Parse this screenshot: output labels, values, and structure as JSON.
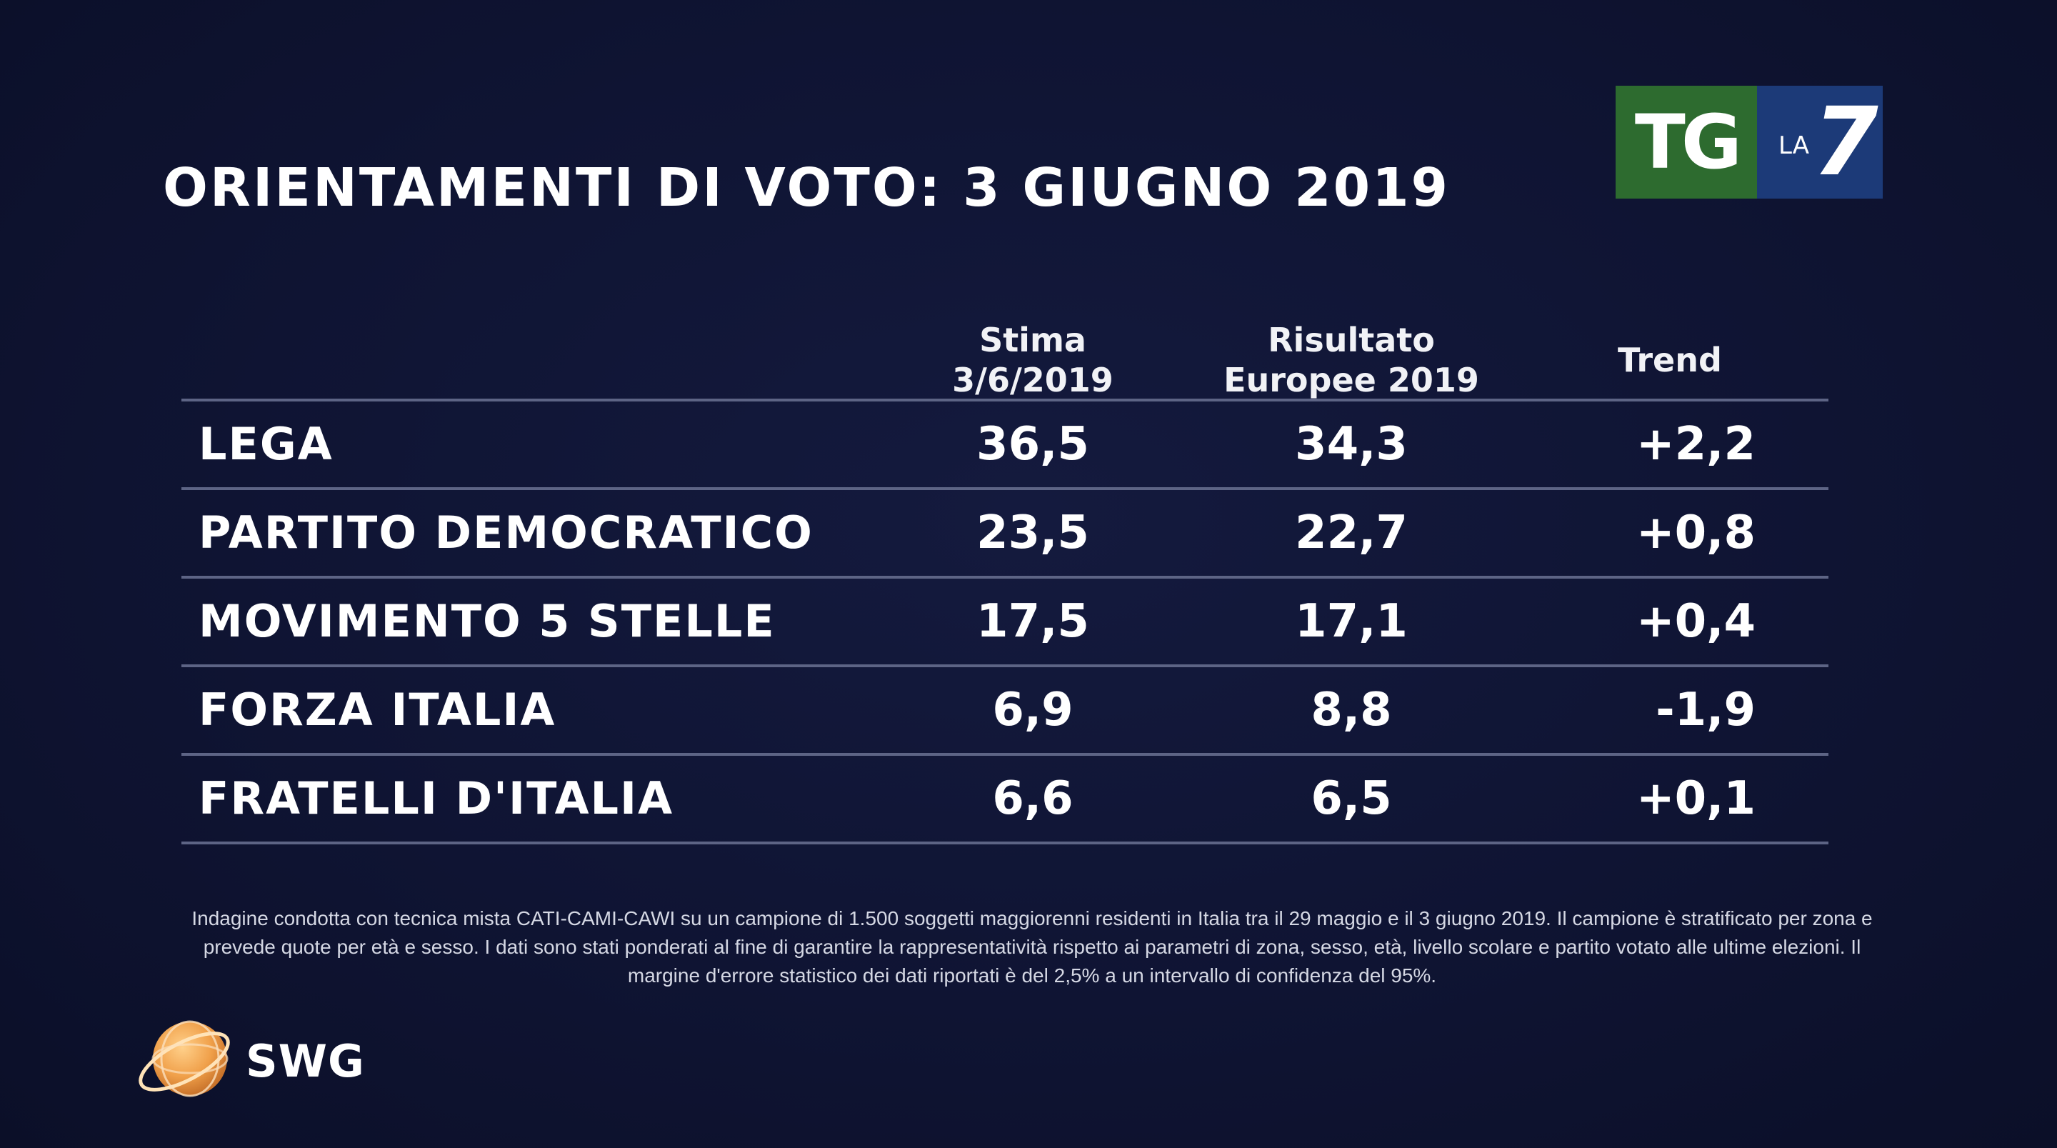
{
  "title": "ORIENTAMENTI DI VOTO: 3 GIUGNO 2019",
  "logo": {
    "tg": "TG",
    "la": "LA",
    "seven": "7",
    "tg_color": "#2d6b2f",
    "la7_color": "#1c3a78"
  },
  "chart_data": {
    "type": "table",
    "columns": [
      "",
      "Stima 3/6/2019",
      "Risultato Europee 2019",
      "Trend"
    ],
    "header": {
      "stima": [
        "Stima",
        "3/6/2019"
      ],
      "risultato": [
        "Risultato",
        "Europee 2019"
      ],
      "trend": "Trend"
    },
    "rows": [
      {
        "party": "LEGA",
        "stima": "36,5",
        "risultato": "34,3",
        "trend": "+2,2"
      },
      {
        "party": "PARTITO DEMOCRATICO",
        "stima": "23,5",
        "risultato": "22,7",
        "trend": "+0,8"
      },
      {
        "party": "MOVIMENTO 5 STELLE",
        "stima": "17,5",
        "risultato": "17,1",
        "trend": "+0,4"
      },
      {
        "party": "FORZA ITALIA",
        "stima": "6,9",
        "risultato": "8,8",
        "trend": "-1,9"
      },
      {
        "party": "FRATELLI D'ITALIA",
        "stima": "6,6",
        "risultato": "6,5",
        "trend": "+0,1"
      }
    ]
  },
  "note": "Indagine condotta con tecnica mista CATI-CAMI-CAWI su un campione di 1.500 soggetti maggiorenni residenti in Italia tra il 29 maggio e il 3 giugno 2019. Il campione è stratificato per zona e prevede quote per età e sesso. I dati sono stati ponderati al fine di garantire la rappresentatività rispetto ai parametri di zona, sesso, età, livello scolare e partito votato alle ultime elezioni. Il margine d'errore statistico dei dati riportati è del 2,5% a un intervallo di confidenza del 95%.",
  "brand": {
    "name": "SWG",
    "globe_color": "#f0a04a"
  }
}
